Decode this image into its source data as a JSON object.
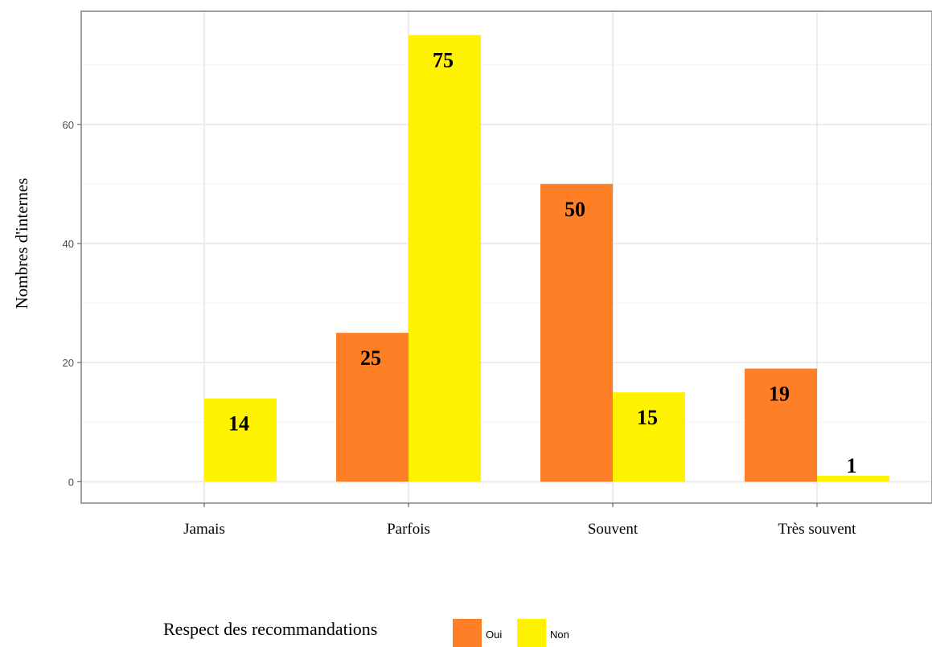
{
  "chart_data": {
    "type": "bar",
    "title": "",
    "xlabel": "",
    "ylabel": "Nombres d'internes",
    "categories": [
      "Jamais",
      "Parfois",
      "Souvent",
      "Très souvent"
    ],
    "series": [
      {
        "name": "Oui",
        "color": "#FF7F27",
        "values": [
          0,
          25,
          50,
          19
        ]
      },
      {
        "name": "Non",
        "color": "#FFF200",
        "values": [
          14,
          75,
          15,
          1
        ]
      }
    ],
    "data_labels": [
      [
        null,
        25,
        50,
        19
      ],
      [
        14,
        75,
        15,
        1
      ]
    ],
    "ylim": [
      -3.6,
      79
    ],
    "yticks": [
      0,
      20,
      40,
      60
    ],
    "grid": true,
    "legend": {
      "title": "Respect des recommandations",
      "position": "bottom"
    }
  }
}
